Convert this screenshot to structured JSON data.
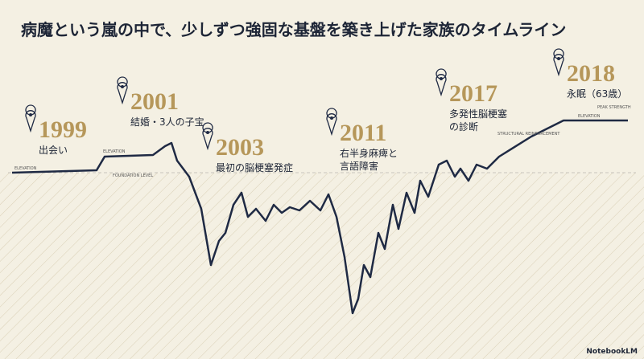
{
  "title": "病魔という嵐の中で、少しずつ強固な基盤を築き上げた家族のタイムライン",
  "events": [
    {
      "year": "1999",
      "label": "出会い"
    },
    {
      "year": "2001",
      "label": "結婚・3人の子宝"
    },
    {
      "year": "2003",
      "label": "最初の脳梗塞発症"
    },
    {
      "year": "2011",
      "label": "右半身麻痺と\n言語障害"
    },
    {
      "year": "2017",
      "label": "多発性脳梗塞\nの診断"
    },
    {
      "year": "2018",
      "label": "永眠（63歳）"
    }
  ],
  "annotations": [
    "ELEVATION",
    "ELEVATION",
    "FOUNDATION LEVEL",
    "STRUCTURAL REINFORCEMENT",
    "PEAK STRENGTH",
    "ELEVATION"
  ],
  "brand": "NotebookLM"
}
